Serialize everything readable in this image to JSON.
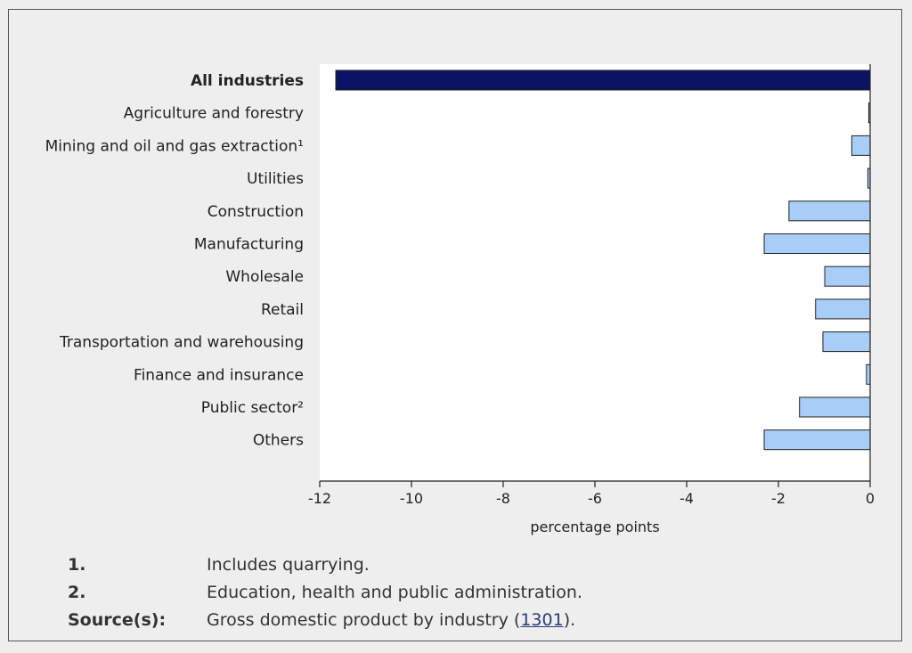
{
  "chart_data": {
    "type": "bar",
    "orientation": "horizontal",
    "categories": [
      "All industries",
      "Agriculture and forestry",
      "Mining and oil and gas extraction¹",
      "Utilities",
      "Construction",
      "Manufacturing",
      "Wholesale",
      "Retail",
      "Transportation and warehousing",
      "Finance and insurance",
      "Public sector²",
      "Others"
    ],
    "values": [
      -11.65,
      -0.03,
      -0.4,
      -0.05,
      -1.77,
      -2.31,
      -0.99,
      -1.19,
      -1.03,
      -0.08,
      -1.54,
      -2.31
    ],
    "highlight_index": 0,
    "xlabel": "percentage points",
    "xlim": [
      -12,
      0
    ],
    "xticks": [
      -12,
      -10,
      -8,
      -6,
      -4,
      -2,
      0
    ],
    "xtick_labels": [
      "-12",
      "-10",
      "-8",
      "-6",
      "-4",
      "-2",
      "0"
    ],
    "colors": {
      "highlight": "#0b1464",
      "bar": "#a8cdf7",
      "outline": "#222222"
    },
    "grid": false
  },
  "notes": [
    {
      "key": "1.",
      "text": "Includes quarrying."
    },
    {
      "key": "2.",
      "text": "Education, health and public administration."
    }
  ],
  "source": {
    "key": "Source(s):",
    "text_before": "Gross domestic product by industry (",
    "link_text": "1301",
    "text_after": ")."
  }
}
